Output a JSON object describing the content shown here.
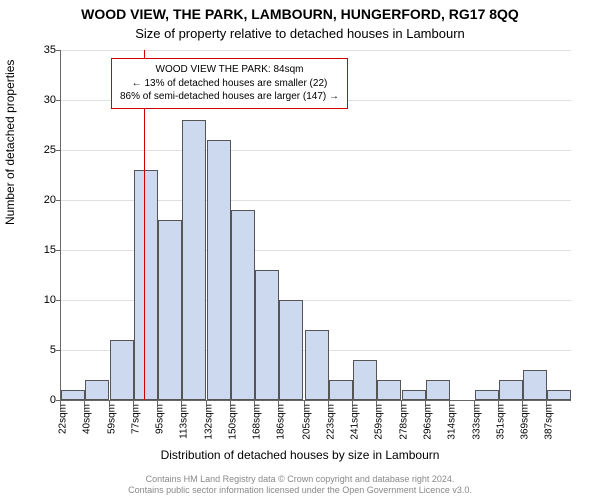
{
  "chart": {
    "type": "histogram",
    "title_main": "WOOD VIEW, THE PARK, LAMBOURN, HUNGERFORD, RG17 8QQ",
    "title_sub": "Size of property relative to detached houses in Lambourn",
    "ylabel": "Number of detached properties",
    "xlabel": "Distribution of detached houses by size in Lambourn",
    "title_fontsize": 14,
    "sub_fontsize": 13,
    "label_fontsize": 12,
    "tick_fontsize": 11,
    "background_color": "#ffffff",
    "grid_color": "#e0e0e0",
    "axis_color": "#666666",
    "bar_fill": "#cdd9ee",
    "bar_stroke": "#555555",
    "refline_color": "#d00000",
    "refline_x_value": 84,
    "ylim": [
      0,
      35
    ],
    "ytick_step": 5,
    "xticks": [
      "22sqm",
      "40sqm",
      "59sqm",
      "77sqm",
      "95sqm",
      "113sqm",
      "132sqm",
      "150sqm",
      "168sqm",
      "186sqm",
      "205sqm",
      "223sqm",
      "241sqm",
      "259sqm",
      "278sqm",
      "296sqm",
      "314sqm",
      "333sqm",
      "351sqm",
      "369sqm",
      "387sqm"
    ],
    "xtick_values": [
      22,
      40,
      59,
      77,
      95,
      113,
      132,
      150,
      168,
      186,
      205,
      223,
      241,
      259,
      278,
      296,
      314,
      333,
      351,
      369,
      387
    ],
    "x_range": [
      22,
      405
    ],
    "bars": [
      {
        "x": 22,
        "count": 1
      },
      {
        "x": 40,
        "count": 2
      },
      {
        "x": 59,
        "count": 6
      },
      {
        "x": 77,
        "count": 23
      },
      {
        "x": 95,
        "count": 18
      },
      {
        "x": 113,
        "count": 28
      },
      {
        "x": 132,
        "count": 26
      },
      {
        "x": 150,
        "count": 19
      },
      {
        "x": 168,
        "count": 13
      },
      {
        "x": 186,
        "count": 10
      },
      {
        "x": 205,
        "count": 7
      },
      {
        "x": 223,
        "count": 2
      },
      {
        "x": 241,
        "count": 4
      },
      {
        "x": 259,
        "count": 2
      },
      {
        "x": 278,
        "count": 1
      },
      {
        "x": 296,
        "count": 2
      },
      {
        "x": 314,
        "count": 0
      },
      {
        "x": 333,
        "count": 1
      },
      {
        "x": 351,
        "count": 2
      },
      {
        "x": 369,
        "count": 3
      },
      {
        "x": 387,
        "count": 1
      }
    ],
    "bar_width_ratio": 1.0,
    "info_box": {
      "line1": "WOOD VIEW THE PARK: 84sqm",
      "line2": "← 13% of detached houses are smaller (22)",
      "line3": "86% of semi-detached houses are larger (147) →"
    },
    "footer_line1": "Contains HM Land Registry data © Crown copyright and database right 2024.",
    "footer_line2": "Contains public sector information licensed under the Open Government Licence v3.0."
  }
}
